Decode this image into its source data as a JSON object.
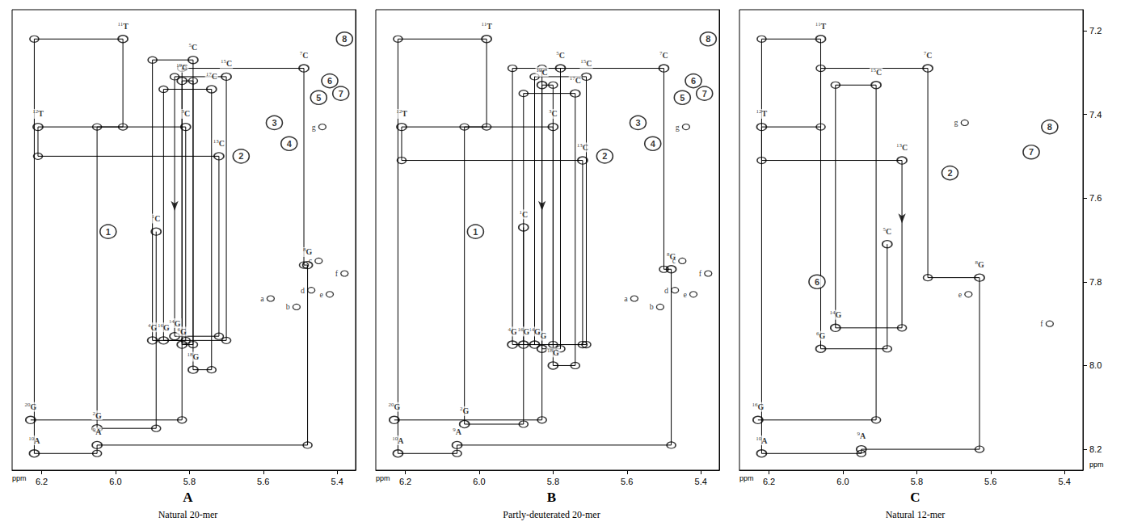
{
  "chart_data": [
    {
      "type": "scatter",
      "title": "A",
      "subtitle": "Natural 20-mer",
      "xlabel": "ppm",
      "color": "#000000",
      "xlim": [
        6.28,
        5.35
      ],
      "ylim": [
        7.15,
        8.25
      ],
      "xticks": [
        6.2,
        {
          "value": 6.0,
          "label": "6.0"
        },
        5.8,
        5.6,
        5.4
      ],
      "yticks": [
        7.2,
        7.4,
        7.6,
        7.8,
        {
          "value": 8.0,
          "label": "8.0"
        },
        8.2
      ],
      "tick_labels": "x",
      "residues": [
        {
          "label": "1C",
          "h1": 5.89,
          "h6": 7.68
        },
        {
          "label": "2G",
          "h1": 6.05,
          "h6": 8.15
        },
        {
          "label": "3C",
          "h1": 5.81,
          "h6": 7.43
        },
        {
          "label": "4G",
          "h1": 5.9,
          "h6": 7.94
        },
        {
          "label": "5C",
          "h1": 5.79,
          "h6": 7.27
        },
        {
          "label": "6G",
          "h1": 5.82,
          "h6": 7.95
        },
        {
          "label": "7C",
          "h1": 5.49,
          "h6": 7.29
        },
        {
          "label": "8G",
          "h1": 5.48,
          "h6": 7.76
        },
        {
          "label": "9A",
          "h1": 6.05,
          "h6": 8.19
        },
        {
          "label": "10A",
          "h1": 6.22,
          "h6": 8.21
        },
        {
          "label": "11T",
          "h1": 5.98,
          "h6": 7.22
        },
        {
          "label": "12T",
          "h1": 6.21,
          "h6": 7.43
        },
        {
          "label": "13C",
          "h1": 5.72,
          "h6": 7.5
        },
        {
          "label": "14G",
          "h1": 5.84,
          "h6": 7.93
        },
        {
          "label": "15C",
          "h1": 5.7,
          "h6": 7.31
        },
        {
          "label": "16G",
          "h1": 5.87,
          "h6": 7.94
        },
        {
          "label": "17C",
          "h1": 5.74,
          "h6": 7.34
        },
        {
          "label": "18G",
          "h1": 5.79,
          "h6": 8.01
        },
        {
          "label": "19C",
          "h1": 5.82,
          "h6": 7.32
        },
        {
          "label": "20G",
          "h1": 6.23,
          "h6": 8.13
        }
      ],
      "numbered_peaks": [
        {
          "label": "1",
          "x": 6.02,
          "y": 7.68
        },
        {
          "label": "2",
          "x": 5.66,
          "y": 7.5
        },
        {
          "label": "3",
          "x": 5.57,
          "y": 7.42
        },
        {
          "label": "4",
          "x": 5.53,
          "y": 7.47
        },
        {
          "label": "5",
          "x": 5.45,
          "y": 7.36
        },
        {
          "label": "6",
          "x": 5.42,
          "y": 7.32
        },
        {
          "label": "7",
          "x": 5.39,
          "y": 7.35
        },
        {
          "label": "8",
          "x": 5.38,
          "y": 7.22
        }
      ],
      "lettered_peaks": [
        {
          "label": "a",
          "x": 5.58,
          "y": 7.84
        },
        {
          "label": "b",
          "x": 5.51,
          "y": 7.86
        },
        {
          "label": "c",
          "x": 5.45,
          "y": 7.75
        },
        {
          "label": "d",
          "x": 5.47,
          "y": 7.82
        },
        {
          "label": "e",
          "x": 5.42,
          "y": 7.83
        },
        {
          "label": "f",
          "x": 5.38,
          "y": 7.78
        },
        {
          "label": "g",
          "x": 5.44,
          "y": 7.43
        }
      ],
      "arrows": [
        {
          "x": 5.84,
          "y": 7.63
        }
      ]
    },
    {
      "type": "scatter",
      "title": "B",
      "subtitle": "Partly-deuterated 20-mer",
      "xlabel": "ppm",
      "color": "#000000",
      "xlim": [
        6.28,
        5.35
      ],
      "ylim": [
        7.15,
        8.25
      ],
      "xticks": [
        6.2,
        {
          "value": 6.0,
          "label": "6.0"
        },
        5.8,
        5.6,
        5.4
      ],
      "yticks": [
        7.2,
        7.4,
        7.6,
        7.8,
        {
          "value": 8.0,
          "label": "8.0"
        },
        8.2
      ],
      "tick_labels": "x",
      "residues": [
        {
          "label": "1C",
          "h1": 5.88,
          "h6": 7.67
        },
        {
          "label": "2G",
          "h1": 6.04,
          "h6": 8.14
        },
        {
          "label": "3C",
          "h1": 5.8,
          "h6": 7.43
        },
        {
          "label": "4G",
          "h1": 5.91,
          "h6": 7.95
        },
        {
          "label": "5C",
          "h1": 5.78,
          "h6": 7.29
        },
        {
          "label": "6G",
          "h1": 5.83,
          "h6": 7.96
        },
        {
          "label": "7C",
          "h1": 5.5,
          "h6": 7.29
        },
        {
          "label": "8G",
          "h1": 5.48,
          "h6": 7.77
        },
        {
          "label": "9A",
          "h1": 6.06,
          "h6": 8.19
        },
        {
          "label": "10A",
          "h1": 6.22,
          "h6": 8.21
        },
        {
          "label": "11T",
          "h1": 5.98,
          "h6": 7.22
        },
        {
          "label": "12T",
          "h1": 6.21,
          "h6": 7.43
        },
        {
          "label": "13C",
          "h1": 5.72,
          "h6": 7.51
        },
        {
          "label": "14G",
          "h1": 5.85,
          "h6": 7.95
        },
        {
          "label": "15C",
          "h1": 5.71,
          "h6": 7.31
        },
        {
          "label": "16G",
          "h1": 5.88,
          "h6": 7.95
        },
        {
          "label": "17C",
          "h1": 5.74,
          "h6": 7.35
        },
        {
          "label": "18G",
          "h1": 5.8,
          "h6": 8.0
        },
        {
          "label": "19C",
          "h1": 5.83,
          "h6": 7.33
        },
        {
          "label": "20G",
          "h1": 6.23,
          "h6": 8.13
        }
      ],
      "numbered_peaks": [
        {
          "label": "1",
          "x": 6.01,
          "y": 7.68
        },
        {
          "label": "2",
          "x": 5.66,
          "y": 7.5
        },
        {
          "label": "3",
          "x": 5.57,
          "y": 7.42
        },
        {
          "label": "4",
          "x": 5.53,
          "y": 7.47
        },
        {
          "label": "5",
          "x": 5.45,
          "y": 7.36
        },
        {
          "label": "6",
          "x": 5.42,
          "y": 7.32
        },
        {
          "label": "7",
          "x": 5.39,
          "y": 7.35
        },
        {
          "label": "8",
          "x": 5.38,
          "y": 7.22
        }
      ],
      "lettered_peaks": [
        {
          "label": "a",
          "x": 5.58,
          "y": 7.84
        },
        {
          "label": "b",
          "x": 5.51,
          "y": 7.86
        },
        {
          "label": "c",
          "x": 5.45,
          "y": 7.75
        },
        {
          "label": "d",
          "x": 5.47,
          "y": 7.82
        },
        {
          "label": "e",
          "x": 5.42,
          "y": 7.83
        },
        {
          "label": "f",
          "x": 5.38,
          "y": 7.78
        },
        {
          "label": "g",
          "x": 5.44,
          "y": 7.43
        }
      ],
      "arrows": [
        {
          "x": 5.83,
          "y": 7.63
        }
      ]
    },
    {
      "type": "scatter",
      "title": "C",
      "subtitle": "Natural 12-mer",
      "xlabel": "ppm",
      "ylabel": "ppm",
      "color": "#000000",
      "xlim": [
        6.28,
        5.35
      ],
      "ylim": [
        7.15,
        8.25
      ],
      "xticks": [
        6.2,
        {
          "value": 6.0,
          "label": "6.0"
        },
        5.8,
        5.6,
        5.4
      ],
      "yticks": [
        7.2,
        7.4,
        7.6,
        7.8,
        {
          "value": 8.0,
          "label": "8.0"
        },
        8.2
      ],
      "tick_labels": true,
      "residues": [
        {
          "label": "5C",
          "h1": 5.88,
          "h6": 7.71
        },
        {
          "label": "6G",
          "h1": 6.06,
          "h6": 7.96
        },
        {
          "label": "7C",
          "h1": 5.77,
          "h6": 7.29
        },
        {
          "label": "8G",
          "h1": 5.63,
          "h6": 7.79
        },
        {
          "label": "9A",
          "h1": 5.95,
          "h6": 8.2
        },
        {
          "label": "10A",
          "h1": 6.22,
          "h6": 8.21
        },
        {
          "label": "11T",
          "h1": 6.06,
          "h6": 7.22
        },
        {
          "label": "12T",
          "h1": 6.22,
          "h6": 7.43
        },
        {
          "label": "13C",
          "h1": 5.84,
          "h6": 7.51
        },
        {
          "label": "14G",
          "h1": 6.02,
          "h6": 7.91
        },
        {
          "label": "15C",
          "h1": 5.91,
          "h6": 7.33
        },
        {
          "label": "16G",
          "h1": 6.23,
          "h6": 8.13
        }
      ],
      "numbered_peaks": [
        {
          "label": "2",
          "x": 5.71,
          "y": 7.54
        },
        {
          "label": "6",
          "x": 6.07,
          "y": 7.8
        },
        {
          "label": "7",
          "x": 5.49,
          "y": 7.49
        },
        {
          "label": "8",
          "x": 5.44,
          "y": 7.43
        }
      ],
      "lettered_peaks": [
        {
          "label": "e",
          "x": 5.66,
          "y": 7.83
        },
        {
          "label": "f",
          "x": 5.44,
          "y": 7.9
        },
        {
          "label": "g",
          "x": 5.67,
          "y": 7.42
        }
      ],
      "arrows": [
        {
          "x": 5.84,
          "y": 7.66
        }
      ]
    }
  ]
}
